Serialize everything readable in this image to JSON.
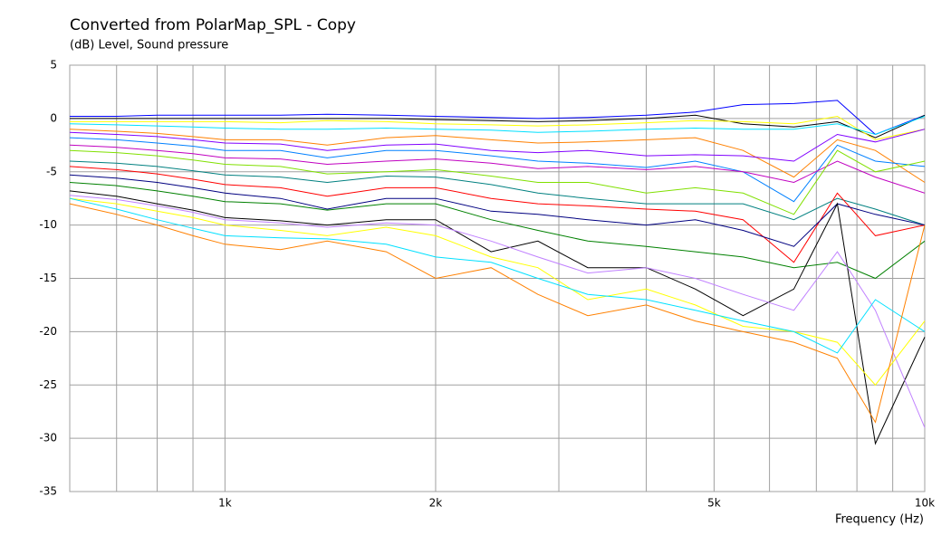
{
  "chart_data": {
    "type": "line",
    "title": "Converted from PolarMap_SPL - Copy",
    "y_label": "(dB)  Level, Sound pressure",
    "x_label": "Frequency  (Hz)",
    "log_x": true,
    "grid": true,
    "xlim": [
      600,
      10000
    ],
    "xticks": [
      {
        "value": 1000,
        "label": "1k"
      },
      {
        "value": 2000,
        "label": "2k"
      },
      {
        "value": 5000,
        "label": "5k"
      },
      {
        "value": 10000,
        "label": "10k"
      }
    ],
    "xminor": [
      700,
      800,
      900,
      3000,
      4000,
      6000,
      7000,
      8000,
      9000
    ],
    "ylim": [
      -35,
      5
    ],
    "yticks": [
      5,
      0,
      -5,
      -10,
      -15,
      -20,
      -25,
      -30,
      -35
    ],
    "x": [
      600,
      700,
      800,
      900,
      1000,
      1200,
      1400,
      1700,
      2000,
      2400,
      2800,
      3300,
      4000,
      4700,
      5500,
      6500,
      7500,
      8500,
      10000
    ],
    "series": [
      {
        "color": "#0000ff",
        "values": [
          0.2,
          0.2,
          0.3,
          0.3,
          0.3,
          0.3,
          0.4,
          0.3,
          0.2,
          0.1,
          0,
          0.1,
          0.3,
          0.6,
          1.3,
          1.4,
          1.7,
          -1.5,
          0.3
        ]
      },
      {
        "color": "#000000",
        "values": [
          0,
          0,
          0,
          0,
          0,
          0,
          0,
          0,
          -0.1,
          -0.2,
          -0.3,
          -0.2,
          0,
          0.3,
          -0.5,
          -0.8,
          -0.3,
          -1.8,
          0.3
        ]
      },
      {
        "color": "#ffff00",
        "values": [
          -0.3,
          -0.3,
          -0.3,
          -0.3,
          -0.3,
          -0.4,
          -0.2,
          -0.3,
          -0.5,
          -0.6,
          -0.7,
          -0.6,
          -0.4,
          -0.2,
          -0.3,
          -0.5,
          0.2,
          -2,
          -1
        ]
      },
      {
        "color": "#00e0ff",
        "values": [
          -0.5,
          -0.6,
          -0.7,
          -0.8,
          -0.9,
          -1,
          -1,
          -0.9,
          -1,
          -1.1,
          -1.3,
          -1.2,
          -1,
          -0.9,
          -1,
          -1,
          -0.5,
          -1.5,
          0.2
        ]
      },
      {
        "color": "#ff8000",
        "values": [
          -1,
          -1.2,
          -1.4,
          -1.7,
          -2,
          -2,
          -2.5,
          -1.8,
          -1.6,
          -2,
          -2.3,
          -2.2,
          -2,
          -1.8,
          -3,
          -5.5,
          -2,
          -3,
          -6
        ]
      },
      {
        "color": "#8000ff",
        "values": [
          -1.3,
          -1.5,
          -1.7,
          -2,
          -2.3,
          -2.4,
          -3,
          -2.5,
          -2.4,
          -3,
          -3.2,
          -3,
          -3.5,
          -3.4,
          -3.5,
          -4,
          -1.5,
          -2.2,
          -1
        ]
      },
      {
        "color": "#0080ff",
        "values": [
          -1.8,
          -2,
          -2.3,
          -2.6,
          -3,
          -3,
          -3.7,
          -3,
          -3,
          -3.5,
          -4,
          -4.2,
          -4.6,
          -4,
          -5,
          -7.8,
          -2.5,
          -4,
          -4.5
        ]
      },
      {
        "color": "#c000c0",
        "values": [
          -2.5,
          -2.7,
          -3,
          -3.3,
          -3.7,
          -3.8,
          -4.3,
          -4,
          -3.8,
          -4.2,
          -4.7,
          -4.5,
          -4.8,
          -4.5,
          -5,
          -6,
          -4,
          -5.5,
          -7
        ]
      },
      {
        "color": "#80e000",
        "values": [
          -3,
          -3.2,
          -3.5,
          -3.9,
          -4.3,
          -4.5,
          -5.2,
          -5,
          -4.8,
          -5.4,
          -6,
          -6,
          -7,
          -6.5,
          -7,
          -9,
          -3,
          -5,
          -4
        ]
      },
      {
        "color": "#008080",
        "values": [
          -4,
          -4.2,
          -4.5,
          -4.9,
          -5.3,
          -5.5,
          -6,
          -5.4,
          -5.5,
          -6.2,
          -7,
          -7.5,
          -8,
          -8,
          -8,
          -9.5,
          -7.5,
          -8.5,
          -10
        ]
      },
      {
        "color": "#ff0000",
        "values": [
          -4.5,
          -4.8,
          -5.2,
          -5.7,
          -6.2,
          -6.5,
          -7.3,
          -6.5,
          -6.5,
          -7.5,
          -8,
          -8.2,
          -8.5,
          -8.7,
          -9.5,
          -13.5,
          -7,
          -11,
          -10
        ]
      },
      {
        "color": "#000080",
        "values": [
          -5.3,
          -5.6,
          -6,
          -6.5,
          -7,
          -7.5,
          -8.5,
          -7.5,
          -7.5,
          -8.7,
          -9,
          -9.5,
          -10,
          -9.5,
          -10.5,
          -12,
          -8,
          -9,
          -10
        ]
      },
      {
        "color": "#008000",
        "values": [
          -6,
          -6.3,
          -6.8,
          -7.3,
          -7.8,
          -8,
          -8.6,
          -8,
          -8,
          -9.5,
          -10.5,
          -11.5,
          -12,
          -12.5,
          -13,
          -14,
          -13.5,
          -15,
          -11.5
        ]
      },
      {
        "color": "#000000",
        "values": [
          -6.8,
          -7.3,
          -8,
          -8.6,
          -9.3,
          -9.6,
          -10,
          -9.5,
          -9.5,
          -12.5,
          -11.5,
          -14,
          -14,
          -16,
          -18.5,
          -16,
          -8,
          -30.5,
          -20.5
        ]
      },
      {
        "color": "#c080ff",
        "values": [
          -7.2,
          -7.6,
          -8.2,
          -8.8,
          -9.5,
          -9.8,
          -10.2,
          -9.8,
          -10,
          -11.5,
          -13,
          -14.5,
          -14,
          -15,
          -16.5,
          -18,
          -12.5,
          -18,
          -29
        ]
      },
      {
        "color": "#ffff00",
        "values": [
          -7.5,
          -8,
          -8.7,
          -9.3,
          -10,
          -10.5,
          -11,
          -10.2,
          -11,
          -13,
          -14,
          -17,
          -16,
          -17.5,
          -19.5,
          -20,
          -21,
          -25,
          -19
        ]
      },
      {
        "color": "#00e0ff",
        "values": [
          -7.5,
          -8.5,
          -9.5,
          -10.3,
          -11,
          -11.2,
          -11.3,
          -11.8,
          -13,
          -13.5,
          -15,
          -16.5,
          -17,
          -18,
          -19,
          -20,
          -22,
          -17,
          -20
        ]
      },
      {
        "color": "#ff8000",
        "values": [
          -8,
          -9,
          -10,
          -11,
          -11.8,
          -12.3,
          -11.5,
          -12.5,
          -15,
          -14,
          -16.5,
          -18.5,
          -17.5,
          -19,
          -20,
          -21,
          -22.5,
          -28.5,
          -10
        ]
      }
    ]
  }
}
